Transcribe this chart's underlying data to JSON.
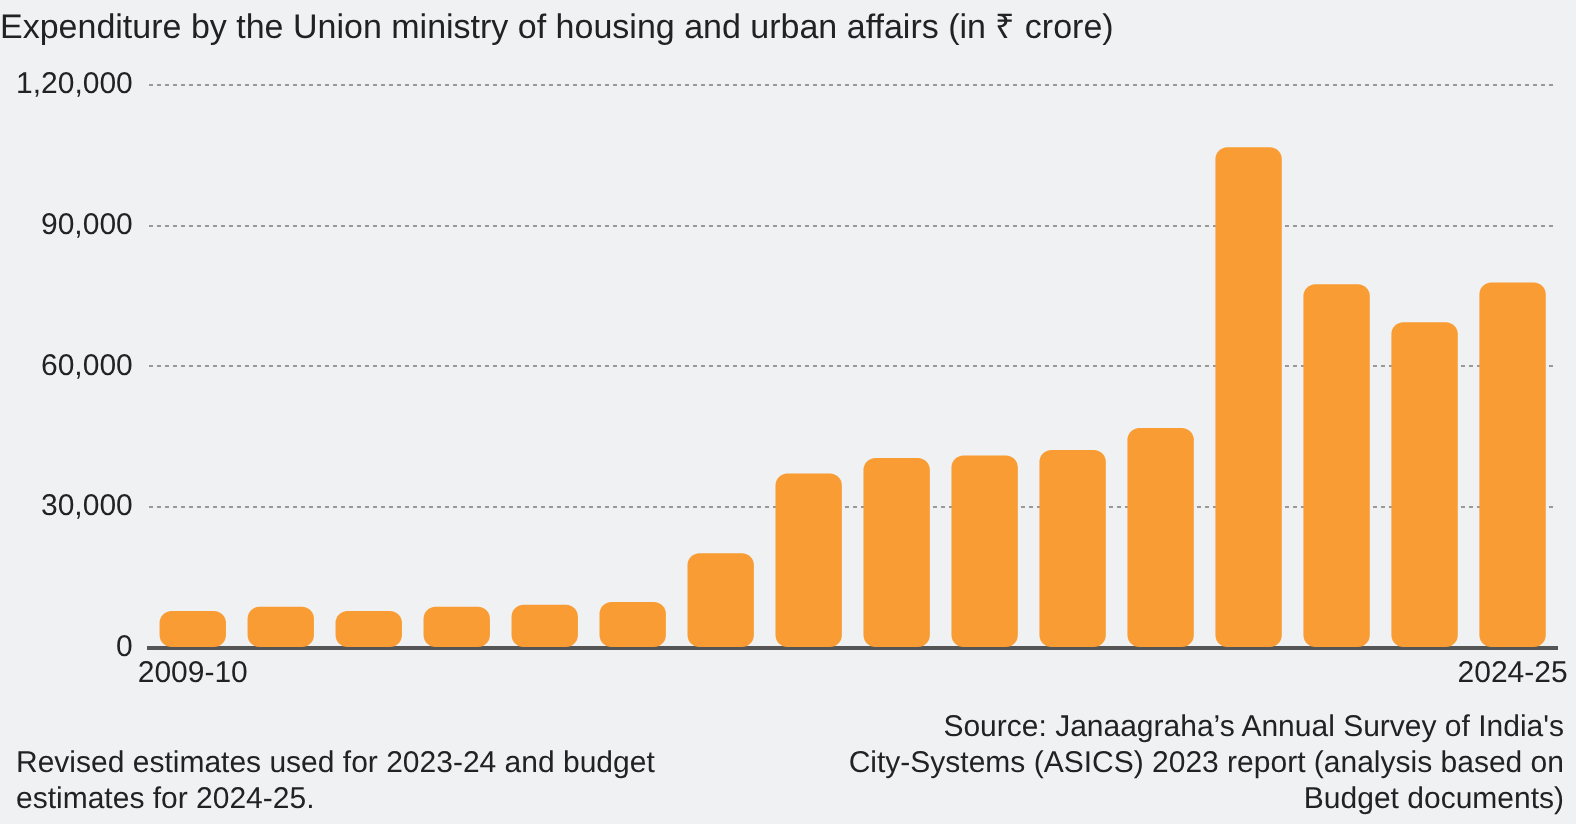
{
  "chart_data": {
    "type": "bar",
    "title": "Expenditure by the Union ministry of housing and urban affairs (in ₹ crore)",
    "categories": [
      "2009-10",
      null,
      null,
      null,
      null,
      null,
      null,
      null,
      null,
      null,
      null,
      null,
      null,
      null,
      null,
      "2024-25"
    ],
    "values": [
      7900,
      8800,
      7900,
      8800,
      9200,
      9800,
      20200,
      37200,
      40500,
      41000,
      42200,
      46900,
      106700,
      77500,
      69400,
      77900
    ],
    "color": "#f89c33",
    "ylim": [
      0,
      120000
    ],
    "yticks": [
      {
        "value": 0,
        "label": "0"
      },
      {
        "value": 30000,
        "label": "30,000"
      },
      {
        "value": 60000,
        "label": "60,000"
      },
      {
        "value": 90000,
        "label": "90,000"
      },
      {
        "value": 120000,
        "label": "1,20,000"
      }
    ],
    "grid": "y",
    "legend": false,
    "annotations": [
      "Revised estimates used for 2023-24 and budget estimates for 2024-25.",
      "Source: Janaagraha’s Annual Survey of India's City-Systems (ASICS) 2023 report (analysis based on Budget documents)"
    ]
  }
}
